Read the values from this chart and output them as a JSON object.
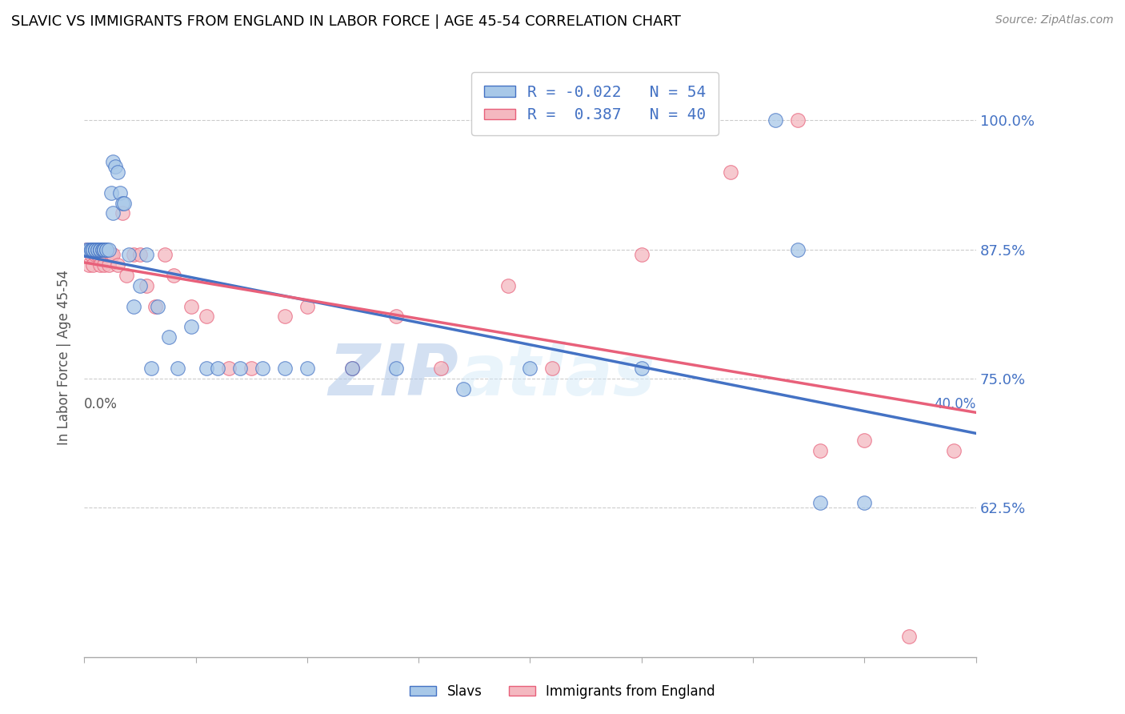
{
  "title": "SLAVIC VS IMMIGRANTS FROM ENGLAND IN LABOR FORCE | AGE 45-54 CORRELATION CHART",
  "source": "Source: ZipAtlas.com",
  "ylabel": "In Labor Force | Age 45-54",
  "xmin": 0.0,
  "xmax": 0.4,
  "ymin": 0.48,
  "ymax": 1.06,
  "legend_r_slavs": "-0.022",
  "legend_n_slavs": "54",
  "legend_r_england": "0.387",
  "legend_n_england": "40",
  "slavs_color": "#a8c8e8",
  "england_color": "#f4b8c0",
  "slavs_line_color": "#4472c4",
  "england_line_color": "#e8607a",
  "watermark_zip": "ZIP",
  "watermark_atlas": "atlas",
  "slavs_x": [
    0.001,
    0.002,
    0.003,
    0.003,
    0.004,
    0.004,
    0.005,
    0.005,
    0.005,
    0.006,
    0.006,
    0.007,
    0.007,
    0.007,
    0.008,
    0.008,
    0.009,
    0.009,
    0.009,
    0.01,
    0.01,
    0.011,
    0.012,
    0.013,
    0.013,
    0.014,
    0.015,
    0.016,
    0.017,
    0.018,
    0.02,
    0.022,
    0.025,
    0.028,
    0.03,
    0.033,
    0.038,
    0.042,
    0.048,
    0.055,
    0.06,
    0.07,
    0.08,
    0.09,
    0.1,
    0.12,
    0.14,
    0.17,
    0.2,
    0.25,
    0.31,
    0.32,
    0.33,
    0.35
  ],
  "slavs_y": [
    0.875,
    0.875,
    0.875,
    0.875,
    0.875,
    0.875,
    0.875,
    0.875,
    0.875,
    0.875,
    0.875,
    0.875,
    0.875,
    0.875,
    0.875,
    0.875,
    0.875,
    0.875,
    0.875,
    0.875,
    0.875,
    0.875,
    0.93,
    0.96,
    0.91,
    0.955,
    0.95,
    0.93,
    0.92,
    0.92,
    0.87,
    0.82,
    0.84,
    0.87,
    0.76,
    0.82,
    0.79,
    0.76,
    0.8,
    0.76,
    0.76,
    0.76,
    0.76,
    0.76,
    0.76,
    0.76,
    0.76,
    0.74,
    0.76,
    0.76,
    1.0,
    0.875,
    0.63,
    0.63
  ],
  "england_x": [
    0.001,
    0.002,
    0.003,
    0.004,
    0.005,
    0.006,
    0.007,
    0.008,
    0.009,
    0.01,
    0.011,
    0.012,
    0.013,
    0.015,
    0.017,
    0.019,
    0.022,
    0.025,
    0.028,
    0.032,
    0.036,
    0.04,
    0.048,
    0.055,
    0.065,
    0.075,
    0.09,
    0.1,
    0.12,
    0.14,
    0.16,
    0.19,
    0.21,
    0.25,
    0.29,
    0.32,
    0.35,
    0.37,
    0.39,
    0.33
  ],
  "england_y": [
    0.875,
    0.86,
    0.87,
    0.86,
    0.87,
    0.87,
    0.86,
    0.87,
    0.86,
    0.87,
    0.86,
    0.87,
    0.87,
    0.86,
    0.91,
    0.85,
    0.87,
    0.87,
    0.84,
    0.82,
    0.87,
    0.85,
    0.82,
    0.81,
    0.76,
    0.76,
    0.81,
    0.82,
    0.76,
    0.81,
    0.76,
    0.84,
    0.76,
    0.87,
    0.95,
    1.0,
    0.69,
    0.5,
    0.68,
    0.68
  ]
}
